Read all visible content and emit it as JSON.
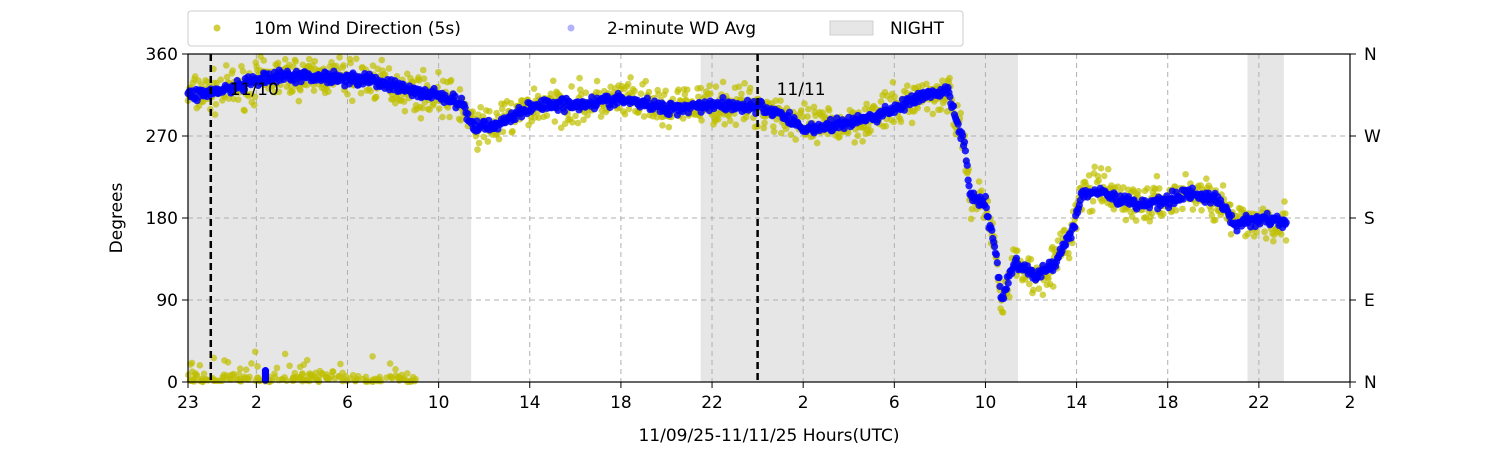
{
  "chart_data": {
    "type": "scatter",
    "title": "",
    "xlabel": "11/09/25-11/11/25  Hours(UTC)",
    "ylabel": "Degrees",
    "x_unit": "hours since 11/09 23:00 UTC",
    "xlim": [
      0,
      51
    ],
    "ylim": [
      0,
      360
    ],
    "x_tick_labels": [
      "23",
      "2",
      "6",
      "10",
      "14",
      "18",
      "22",
      "2",
      "6",
      "10",
      "14",
      "18",
      "22",
      "2"
    ],
    "x_tick_hours": [
      0,
      3,
      7,
      11,
      15,
      19,
      23,
      27,
      31,
      35,
      39,
      43,
      47,
      51
    ],
    "y_ticks": [
      0,
      90,
      180,
      270,
      360
    ],
    "y_tick_labels": [
      "0",
      "90",
      "180",
      "270",
      "360"
    ],
    "y2_tick_labels": [
      "N",
      "E",
      "S",
      "W",
      "N"
    ],
    "grid": true,
    "legend": {
      "placement": "top",
      "entries": [
        "10m Wind Direction (5s)",
        "2-minute WD Avg",
        "NIGHT"
      ]
    },
    "night_periods": [
      [
        0,
        12.43
      ],
      [
        22.5,
        36.43
      ],
      [
        46.5,
        48.1
      ]
    ],
    "date_markers": [
      {
        "hour": 1,
        "label": "11/10"
      },
      {
        "hour": 25,
        "label": "11/11"
      }
    ],
    "series": [
      {
        "name": "2-minute WD Avg",
        "color": "#0000ff",
        "points": [
          [
            0,
            315
          ],
          [
            1,
            318
          ],
          [
            2,
            322
          ],
          [
            3,
            330
          ],
          [
            4,
            335
          ],
          [
            6,
            335
          ],
          [
            8,
            332
          ],
          [
            9,
            325
          ],
          [
            10,
            318
          ],
          [
            11,
            315
          ],
          [
            12,
            305
          ],
          [
            12.5,
            280
          ],
          [
            13.5,
            282
          ],
          [
            14.5,
            295
          ],
          [
            15.5,
            305
          ],
          [
            17,
            305
          ],
          [
            19,
            310
          ],
          [
            21,
            300
          ],
          [
            23,
            305
          ],
          [
            25,
            302
          ],
          [
            26,
            295
          ],
          [
            27,
            278
          ],
          [
            28,
            280
          ],
          [
            29,
            285
          ],
          [
            30,
            290
          ],
          [
            31,
            300
          ],
          [
            32,
            312
          ],
          [
            33.4,
            318
          ],
          [
            33.8,
            280
          ],
          [
            34.1,
            260
          ],
          [
            34.3,
            205
          ],
          [
            35,
            195
          ],
          [
            35.4,
            150
          ],
          [
            35.7,
            92
          ],
          [
            36.3,
            132
          ],
          [
            37.2,
            115
          ],
          [
            38,
            130
          ],
          [
            38.8,
            165
          ],
          [
            39.2,
            205
          ],
          [
            39.9,
            212
          ],
          [
            40.8,
            200
          ],
          [
            42,
            195
          ],
          [
            43,
            200
          ],
          [
            43.9,
            208
          ],
          [
            45.3,
            198
          ],
          [
            46,
            172
          ],
          [
            47.1,
            180
          ],
          [
            48.2,
            175
          ]
        ]
      },
      {
        "name": "10m Wind Direction (5s)",
        "color": "#bfbf00",
        "spread_deg": 25,
        "near_north_cluster_hours": [
          0,
          10
        ]
      }
    ]
  }
}
